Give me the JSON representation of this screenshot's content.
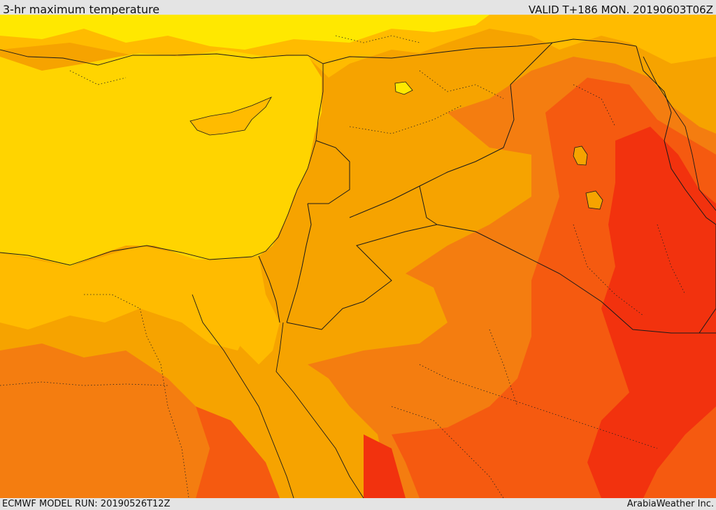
{
  "header": {
    "title": "3-hr maximum temperature",
    "valid_time": "VALID T+186 MON. 20190603T06Z"
  },
  "footer": {
    "model_run": "ECMWF MODEL RUN: 20190526T12Z",
    "credit": "ArabiaWeather Inc."
  },
  "map": {
    "colors": {
      "sea": "#ffd400",
      "band_yellow": "#ffe800",
      "band_light_orange": "#ffbb00",
      "band_orange": "#f6a300",
      "band_dark_orange": "#f47d10",
      "band_red_orange": "#f55a10",
      "band_red": "#f2320e",
      "border_line": "#1a1a1a"
    }
  }
}
